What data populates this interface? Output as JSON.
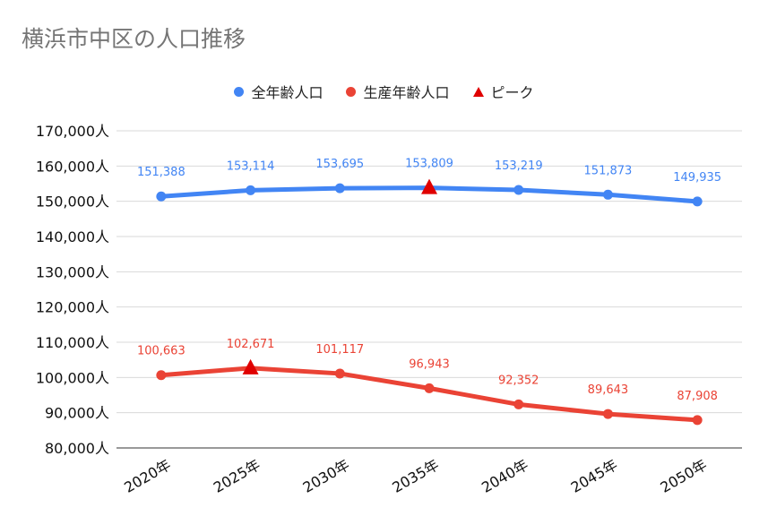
{
  "title": "横浜市中区の人口推移",
  "legend": {
    "total": "全年齢人口",
    "working": "生産年齢人口",
    "peak": "ピーク"
  },
  "chart_data": {
    "type": "line",
    "title": "横浜市中区の人口推移",
    "categories": [
      "2020年",
      "2025年",
      "2030年",
      "2035年",
      "2040年",
      "2045年",
      "2050年"
    ],
    "series": [
      {
        "name": "全年齢人口",
        "color": "#4285f4",
        "values": [
          151388,
          153114,
          153695,
          153809,
          153219,
          151873,
          149935
        ],
        "labels": [
          "151,388",
          "153,114",
          "153,695",
          "153,809",
          "153,219",
          "151,873",
          "149,935"
        ],
        "peak_index": 3
      },
      {
        "name": "生産年齢人口",
        "color": "#ea4335",
        "values": [
          100663,
          102671,
          101117,
          96943,
          92352,
          89643,
          87908
        ],
        "labels": [
          "100,663",
          "102,671",
          "101,117",
          "96,943",
          "92,352",
          "89,643",
          "87,908"
        ],
        "peak_index": 1
      }
    ],
    "peak_marker": {
      "name": "ピーク",
      "color": "#e00000"
    },
    "ylim": [
      80000,
      170000
    ],
    "yticks": [
      80000,
      90000,
      100000,
      110000,
      120000,
      130000,
      140000,
      150000,
      160000,
      170000
    ],
    "ytick_labels": [
      "80,000人",
      "90,000人",
      "100,000人",
      "110,000人",
      "120,000人",
      "130,000人",
      "140,000人",
      "150,000人",
      "160,000人",
      "170,000人"
    ],
    "grid": true,
    "legend_position": "top-center"
  }
}
